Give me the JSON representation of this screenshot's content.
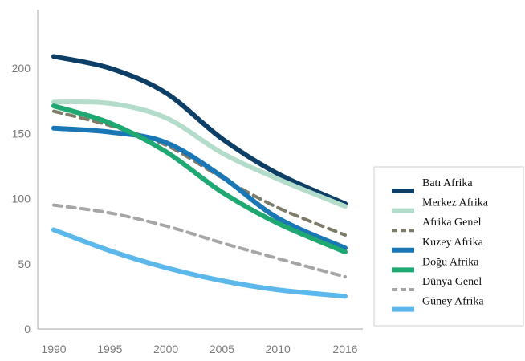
{
  "chart_data": {
    "type": "line",
    "x": [
      1990,
      1995,
      2000,
      2005,
      2010,
      2016
    ],
    "xlim": [
      1990,
      2016
    ],
    "ylim": [
      0,
      210
    ],
    "x_ticks": [
      "1990",
      "1995",
      "2000",
      "2005",
      "2010",
      "2016"
    ],
    "y_ticks": [
      "0",
      "50",
      "100",
      "150",
      "200"
    ],
    "grid": false,
    "legend_position": "right",
    "series": [
      {
        "name": "Batı Afrika",
        "color": "#0d3e66",
        "style": "solid",
        "values": [
          209,
          200,
          181,
          146,
          119,
          96
        ]
      },
      {
        "name": "Merkez Afrika",
        "color": "#b3dccb",
        "style": "solid",
        "values": [
          174,
          173,
          162,
          135,
          115,
          94
        ]
      },
      {
        "name": "Afrika Genel",
        "color": "#7f7b69",
        "style": "dashed",
        "values": [
          167,
          156,
          141,
          116,
          93,
          72
        ]
      },
      {
        "name": "Kuzey Afrika",
        "color": "#1a77b5",
        "style": "solid",
        "values": [
          154,
          151,
          143,
          117,
          85,
          62
        ]
      },
      {
        "name": "Doğu Afrika",
        "color": "#1fa872",
        "style": "solid",
        "values": [
          171,
          158,
          136,
          105,
          81,
          59
        ]
      },
      {
        "name": "Dünya Genel",
        "color": "#a6a6a6",
        "style": "dashed",
        "values": [
          95,
          89,
          79,
          66,
          54,
          40
        ]
      },
      {
        "name": "Güney Afrika",
        "color": "#5cb8ea",
        "style": "solid",
        "values": [
          76,
          60,
          47,
          37,
          30,
          25
        ]
      }
    ]
  }
}
